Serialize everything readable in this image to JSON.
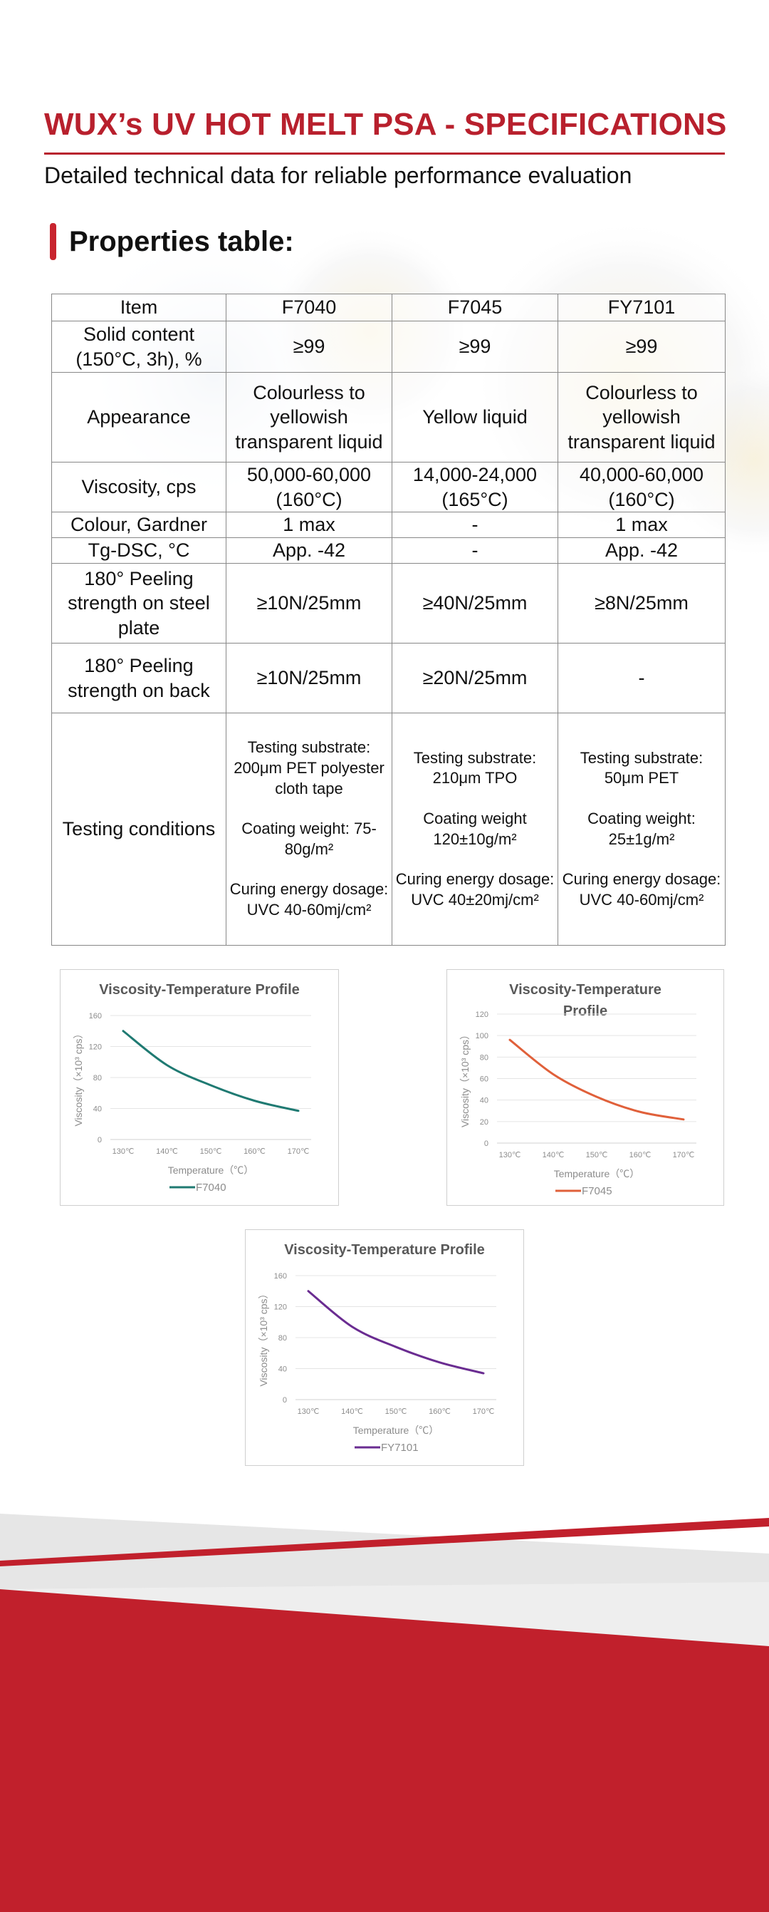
{
  "header": {
    "title": "WUX’s UV HOT MELT PSA - SPECIFICATIONS",
    "subtitle": "Detailed technical data for reliable performance evaluation"
  },
  "section": {
    "heading": "Properties table:"
  },
  "table": {
    "headers": [
      "Item",
      "F7040",
      "F7045",
      "FY7101"
    ],
    "rows": [
      {
        "label": "Solid content (150°C, 3h), %",
        "values": [
          "≥99",
          "≥99",
          "≥99"
        ]
      },
      {
        "label": "Appearance",
        "values": [
          "Colourless to yellowish transparent liquid",
          "Yellow liquid",
          "Colourless to yellowish transparent liquid"
        ]
      },
      {
        "label": "Viscosity, cps",
        "values": [
          "50,000-60,000 (160°C)",
          "14,000-24,000 (165°C)",
          "40,000-60,000 (160°C)"
        ]
      },
      {
        "label": "Colour, Gardner",
        "values": [
          "1 max",
          "-",
          "1 max"
        ]
      },
      {
        "label": "Tg-DSC, °C",
        "values": [
          "App. -42",
          "-",
          "App. -42"
        ]
      },
      {
        "label": "180° Peeling strength on steel plate",
        "values": [
          "≥10N/25mm",
          "≥40N/25mm",
          "≥8N/25mm"
        ]
      },
      {
        "label": "180° Peeling strength on back",
        "values": [
          "≥10N/25mm",
          "≥20N/25mm",
          "-"
        ]
      }
    ],
    "testing": {
      "label": "Testing conditions",
      "columns": [
        {
          "substrate": "Testing substrate: 200μm PET polyester cloth tape",
          "weight": "Coating weight: 75-80g/m²",
          "curing": "Curing energy dosage: UVC 40-60mj/cm²"
        },
        {
          "substrate": "Testing substrate: 210μm TPO",
          "weight": "Coating weight 120±10g/m²",
          "curing": "Curing energy dosage: UVC 40±20mj/cm²"
        },
        {
          "substrate": "Testing substrate: 50μm PET",
          "weight": "Coating weight: 25±1g/m²",
          "curing": "Curing energy dosage: UVC 40-60mj/cm²"
        }
      ]
    }
  },
  "chart_data": [
    {
      "type": "line",
      "title": "Viscosity-Temperature Profile",
      "xlabel": "Temperature（℃）",
      "ylabel": "Viscosity（×10³ cps）",
      "categories": [
        "130℃",
        "140℃",
        "150℃",
        "160℃",
        "170℃"
      ],
      "ylim": [
        0,
        160
      ],
      "yticks": [
        0,
        40,
        80,
        120,
        160
      ],
      "grid": true,
      "legend": "bottom",
      "color": "#1f7a72",
      "series": [
        {
          "name": "F7040",
          "values": [
            140,
            96,
            70,
            50,
            37
          ]
        }
      ]
    },
    {
      "type": "line",
      "title": "Viscosity-Temperature Profile",
      "xlabel": "Temperature（℃）",
      "ylabel": "Viscosity（×10³ cps）",
      "categories": [
        "130℃",
        "140℃",
        "150℃",
        "160℃",
        "170℃"
      ],
      "ylim": [
        0,
        120
      ],
      "yticks": [
        0,
        20,
        40,
        60,
        80,
        100,
        120
      ],
      "grid": true,
      "legend": "bottom",
      "color": "#e0603a",
      "series": [
        {
          "name": "F7045",
          "values": [
            96,
            64,
            43,
            29,
            22
          ]
        }
      ]
    },
    {
      "type": "line",
      "title": "Viscosity-Temperature Profile",
      "xlabel": "Temperature（℃）",
      "ylabel": "Viscosity（×10³ cps）",
      "categories": [
        "130℃",
        "140℃",
        "150℃",
        "160℃",
        "170℃"
      ],
      "ylim": [
        0,
        160
      ],
      "yticks": [
        0,
        40,
        80,
        120,
        160
      ],
      "grid": true,
      "legend": "bottom",
      "color": "#6a2c91",
      "series": [
        {
          "name": "FY7101",
          "values": [
            140,
            94,
            68,
            48,
            34
          ]
        }
      ]
    }
  ],
  "colors": {
    "accent": "#b8202d",
    "band": "#c1202c"
  }
}
